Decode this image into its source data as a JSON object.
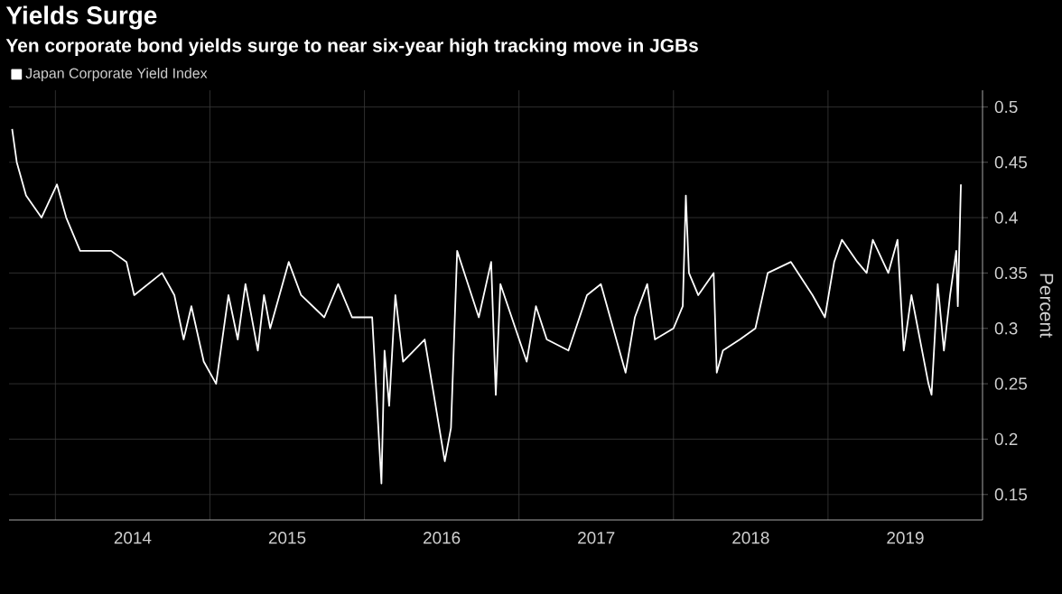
{
  "chart_data": {
    "type": "line",
    "title": "Yields Surge",
    "subtitle": "Yen corporate bond yields surge to near six-year high tracking move in JGBs",
    "ylabel": "Percent",
    "series": [
      {
        "name": "Japan Corporate Yield Index",
        "color": "#ffffff",
        "x": [
          2013.72,
          2013.75,
          2013.81,
          2013.91,
          2014.01,
          2014.07,
          2014.16,
          2014.36,
          2014.46,
          2014.51,
          2014.69,
          2014.77,
          2014.83,
          2014.88,
          2014.96,
          2015.04,
          2015.12,
          2015.18,
          2015.23,
          2015.31,
          2015.35,
          2015.39,
          2015.51,
          2015.59,
          2015.74,
          2015.83,
          2015.92,
          2016.05,
          2016.11,
          2016.13,
          2016.16,
          2016.2,
          2016.25,
          2016.39,
          2016.52,
          2016.56,
          2016.6,
          2016.74,
          2016.82,
          2016.85,
          2016.88,
          2017.05,
          2017.11,
          2017.18,
          2017.32,
          2017.44,
          2017.53,
          2017.69,
          2017.75,
          2017.83,
          2017.88,
          2018.0,
          2018.06,
          2018.08,
          2018.1,
          2018.16,
          2018.26,
          2018.28,
          2018.32,
          2018.43,
          2018.53,
          2018.61,
          2018.76,
          2018.9,
          2018.98,
          2019.04,
          2019.09,
          2019.19,
          2019.25,
          2019.29,
          2019.39,
          2019.45,
          2019.49,
          2019.54,
          2019.65,
          2019.67,
          2019.71,
          2019.75,
          2019.79,
          2019.83,
          2019.84,
          2019.86
        ],
        "values": [
          0.48,
          0.45,
          0.42,
          0.4,
          0.43,
          0.4,
          0.37,
          0.37,
          0.36,
          0.33,
          0.35,
          0.33,
          0.29,
          0.32,
          0.27,
          0.25,
          0.33,
          0.29,
          0.34,
          0.28,
          0.33,
          0.3,
          0.36,
          0.33,
          0.31,
          0.34,
          0.31,
          0.31,
          0.16,
          0.28,
          0.23,
          0.33,
          0.27,
          0.29,
          0.18,
          0.21,
          0.37,
          0.31,
          0.36,
          0.24,
          0.34,
          0.27,
          0.32,
          0.29,
          0.28,
          0.33,
          0.34,
          0.26,
          0.31,
          0.34,
          0.29,
          0.3,
          0.32,
          0.42,
          0.35,
          0.33,
          0.35,
          0.26,
          0.28,
          0.29,
          0.3,
          0.35,
          0.36,
          0.33,
          0.31,
          0.36,
          0.38,
          0.36,
          0.35,
          0.38,
          0.35,
          0.38,
          0.28,
          0.33,
          0.25,
          0.24,
          0.34,
          0.28,
          0.33,
          0.37,
          0.32,
          0.43
        ]
      }
    ],
    "xlim": [
      2013.7,
      2020.0
    ],
    "ylim": [
      0.127,
      0.515
    ],
    "xticks": [
      {
        "value": 2014,
        "label": null
      },
      {
        "value": 2014.5,
        "label": "2014"
      },
      {
        "value": 2015,
        "label": null
      },
      {
        "value": 2015.5,
        "label": "2015"
      },
      {
        "value": 2016,
        "label": null
      },
      {
        "value": 2016.5,
        "label": "2016"
      },
      {
        "value": 2017,
        "label": null
      },
      {
        "value": 2017.5,
        "label": "2017"
      },
      {
        "value": 2018,
        "label": null
      },
      {
        "value": 2018.5,
        "label": "2018"
      },
      {
        "value": 2019,
        "label": null
      },
      {
        "value": 2019.5,
        "label": "2019"
      }
    ],
    "yticks": [
      0.15,
      0.2,
      0.25,
      0.3,
      0.35,
      0.4,
      0.45,
      0.5
    ],
    "grid": true,
    "legend": "top left",
    "line_style": "solid",
    "marker": "none"
  }
}
